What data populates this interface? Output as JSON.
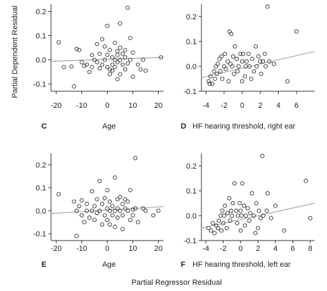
{
  "figure": {
    "ylabel": "Partial Dependent Residual",
    "xlabel": "Partial Regressor Residual"
  },
  "chart_data": [
    {
      "type": "scatter",
      "panel_letter": "C",
      "xlabel": "Age",
      "xlim": [
        -22,
        22
      ],
      "ylim": [
        -0.13,
        0.23
      ],
      "xticks": [
        -20,
        -10,
        0,
        10,
        20
      ],
      "yticks": [
        -0.1,
        0.0,
        0.1,
        0.2
      ],
      "ytick_labels": [
        "-0.1",
        "0.0",
        "0.1",
        "0.2"
      ],
      "fit_line": [
        [
          -22,
          -0.006
        ],
        [
          22,
          0.01
        ]
      ],
      "points": [
        [
          -19,
          0.072
        ],
        [
          -17,
          -0.03
        ],
        [
          -14,
          -0.028
        ],
        [
          -13,
          -0.11
        ],
        [
          -12,
          0.045
        ],
        [
          -11,
          0.04
        ],
        [
          -10,
          -0.01
        ],
        [
          -9,
          -0.025
        ],
        [
          -8,
          -0.02
        ],
        [
          -7,
          -0.05
        ],
        [
          -6,
          0.02
        ],
        [
          -6,
          -0.03
        ],
        [
          -5,
          0.0
        ],
        [
          -4,
          -0.01
        ],
        [
          -4,
          0.065
        ],
        [
          -3,
          0.025
        ],
        [
          -3,
          -0.035
        ],
        [
          -2,
          0.085
        ],
        [
          -2,
          -0.02
        ],
        [
          -1,
          0.055
        ],
        [
          -1,
          0.0
        ],
        [
          0,
          0.02
        ],
        [
          0,
          -0.03
        ],
        [
          0,
          0.14
        ],
        [
          1,
          0.04
        ],
        [
          1,
          -0.04
        ],
        [
          1,
          -0.06
        ],
        [
          2,
          0.01
        ],
        [
          2,
          -0.02
        ],
        [
          2,
          -0.045
        ],
        [
          3,
          0.07
        ],
        [
          3,
          0.0
        ],
        [
          3,
          -0.03
        ],
        [
          4,
          0.035
        ],
        [
          4,
          0.02
        ],
        [
          4,
          -0.01
        ],
        [
          4,
          -0.08
        ],
        [
          5,
          0.15
        ],
        [
          5,
          0.05
        ],
        [
          5,
          0.0
        ],
        [
          5,
          -0.06
        ],
        [
          6,
          0.025
        ],
        [
          6,
          -0.02
        ],
        [
          7,
          0.01
        ],
        [
          7,
          0.04
        ],
        [
          7,
          -0.04
        ],
        [
          8,
          0.215
        ],
        [
          8,
          -0.015
        ],
        [
          9,
          0.09
        ],
        [
          9,
          0.0
        ],
        [
          10,
          0.03
        ],
        [
          10,
          -0.07
        ],
        [
          12,
          -0.02
        ],
        [
          13,
          -0.04
        ],
        [
          14,
          0.0
        ],
        [
          15,
          -0.045
        ],
        [
          21,
          0.01
        ]
      ]
    },
    {
      "type": "scatter",
      "panel_letter": "D",
      "xlabel": "HF hearing threshold, right ear",
      "xlim": [
        -4.5,
        8.0
      ],
      "ylim": [
        -0.1,
        0.25
      ],
      "xticks": [
        -4,
        -2,
        0,
        2,
        4,
        6
      ],
      "yticks": [
        -0.1,
        0.0,
        0.1,
        0.2
      ],
      "ytick_labels": [
        "-0.1",
        "0.0",
        "0.1",
        "0.2"
      ],
      "fit_line": [
        [
          -4.5,
          -0.045
        ],
        [
          8.0,
          0.06
        ]
      ],
      "points": [
        [
          -3.7,
          -0.06
        ],
        [
          -3.6,
          -0.07
        ],
        [
          -3.5,
          -0.04
        ],
        [
          -3.3,
          -0.07
        ],
        [
          -3.1,
          -0.02
        ],
        [
          -3,
          -0.05
        ],
        [
          -2.9,
          0.0
        ],
        [
          -2.8,
          -0.03
        ],
        [
          -2.7,
          0.01
        ],
        [
          -2.5,
          0.03
        ],
        [
          -2.4,
          -0.02
        ],
        [
          -2.3,
          0.04
        ],
        [
          -2.2,
          -0.05
        ],
        [
          -2,
          0.0
        ],
        [
          -1.9,
          0.05
        ],
        [
          -1.8,
          -0.01
        ],
        [
          -1.6,
          0.02
        ],
        [
          -1.5,
          -0.06
        ],
        [
          -1.4,
          0.14
        ],
        [
          -1.3,
          0.01
        ],
        [
          -1.2,
          0.13
        ],
        [
          -1.1,
          0.0
        ],
        [
          -1,
          0.04
        ],
        [
          -0.9,
          -0.03
        ],
        [
          -0.8,
          0.08
        ],
        [
          -0.6,
          0.03
        ],
        [
          -0.5,
          -0.02
        ],
        [
          -0.4,
          0.0
        ],
        [
          -0.2,
          0.05
        ],
        [
          0,
          -0.06
        ],
        [
          0,
          0.02
        ],
        [
          0.1,
          0.05
        ],
        [
          0.3,
          -0.04
        ],
        [
          0.4,
          0.0
        ],
        [
          0.5,
          0.02
        ],
        [
          0.7,
          0.05
        ],
        [
          0.8,
          0.0
        ],
        [
          1,
          -0.05
        ],
        [
          1.1,
          0.03
        ],
        [
          1.3,
          -0.02
        ],
        [
          1.5,
          0.08
        ],
        [
          1.6,
          0.0
        ],
        [
          1.8,
          0.04
        ],
        [
          2,
          0.02
        ],
        [
          2.1,
          -0.03
        ],
        [
          2.3,
          0.02
        ],
        [
          2.5,
          0.05
        ],
        [
          2.6,
          0.0
        ],
        [
          2.8,
          0.24
        ],
        [
          3,
          0.02
        ],
        [
          3.5,
          0.01
        ],
        [
          5,
          -0.06
        ],
        [
          6,
          0.14
        ]
      ]
    },
    {
      "type": "scatter",
      "panel_letter": "E",
      "xlabel": "Age",
      "xlim": [
        -22,
        22
      ],
      "ylim": [
        -0.13,
        0.25
      ],
      "xticks": [
        -20,
        -10,
        0,
        10,
        20
      ],
      "yticks": [
        -0.1,
        0.0,
        0.1,
        0.2
      ],
      "ytick_labels": [
        "-0.1",
        "0.0",
        "0.1",
        "0.2"
      ],
      "fit_line": [
        [
          -22,
          -0.012
        ],
        [
          22,
          0.018
        ]
      ],
      "points": [
        [
          -19,
          0.072
        ],
        [
          -13,
          0.04
        ],
        [
          -12,
          -0.11
        ],
        [
          -12,
          0.0
        ],
        [
          -11,
          0.02
        ],
        [
          -10,
          -0.02
        ],
        [
          -10,
          0.045
        ],
        [
          -9,
          -0.05
        ],
        [
          -8,
          0.0
        ],
        [
          -8,
          0.03
        ],
        [
          -7,
          -0.03
        ],
        [
          -6,
          0.085
        ],
        [
          -6,
          0.0
        ],
        [
          -5,
          0.02
        ],
        [
          -5,
          -0.04
        ],
        [
          -4,
          -0.01
        ],
        [
          -4,
          0.05
        ],
        [
          -3,
          0.13
        ],
        [
          -3,
          0.0
        ],
        [
          -2,
          0.03
        ],
        [
          -2,
          -0.06
        ],
        [
          -1,
          -0.02
        ],
        [
          -1,
          0.055
        ],
        [
          0,
          0.01
        ],
        [
          0,
          -0.04
        ],
        [
          0,
          0.09
        ],
        [
          1,
          0.0
        ],
        [
          1,
          0.04
        ],
        [
          1,
          -0.06
        ],
        [
          2,
          0.02
        ],
        [
          2,
          -0.02
        ],
        [
          3,
          0.145
        ],
        [
          3,
          0.0
        ],
        [
          3,
          -0.07
        ],
        [
          4,
          0.05
        ],
        [
          4,
          0.01
        ],
        [
          4,
          -0.03
        ],
        [
          5,
          0.0
        ],
        [
          5,
          0.06
        ],
        [
          6,
          0.03
        ],
        [
          6,
          -0.02
        ],
        [
          6,
          -0.08
        ],
        [
          7,
          0.01
        ],
        [
          7,
          0.05
        ],
        [
          8,
          0.0
        ],
        [
          8,
          0.04
        ],
        [
          9,
          -0.04
        ],
        [
          9,
          0.09
        ],
        [
          10,
          0.005
        ],
        [
          10,
          -0.02
        ],
        [
          11,
          0.23
        ],
        [
          11,
          0.01
        ],
        [
          12,
          -0.05
        ],
        [
          14,
          0.01
        ],
        [
          15,
          0.0
        ],
        [
          18,
          -0.02
        ],
        [
          20,
          0.0
        ]
      ]
    },
    {
      "type": "scatter",
      "panel_letter": "F",
      "xlabel": "HF hearing threshold, left ear",
      "xlim": [
        -4.5,
        8.5
      ],
      "ylim": [
        -0.1,
        0.25
      ],
      "xticks": [
        -4,
        -2,
        0,
        2,
        4,
        6,
        8
      ],
      "yticks": [
        -0.1,
        0.0,
        0.1,
        0.2
      ],
      "ytick_labels": [
        "-0.1",
        "0.0",
        "0.1",
        "0.2"
      ],
      "fit_line": [
        [
          -4.5,
          -0.05
        ],
        [
          8.5,
          0.05
        ]
      ],
      "points": [
        [
          -3.7,
          -0.05
        ],
        [
          -3.4,
          -0.06
        ],
        [
          -3.2,
          -0.03
        ],
        [
          -3.0,
          -0.07
        ],
        [
          -2.8,
          -0.04
        ],
        [
          -2.6,
          -0.05
        ],
        [
          -2.5,
          -0.02
        ],
        [
          -2.3,
          0.0
        ],
        [
          -2.2,
          -0.06
        ],
        [
          -2.1,
          0.02
        ],
        [
          -2.0,
          -0.03
        ],
        [
          -1.9,
          0.0
        ],
        [
          -1.8,
          0.04
        ],
        [
          -1.6,
          -0.05
        ],
        [
          -1.5,
          0.01
        ],
        [
          -1.3,
          0.07
        ],
        [
          -1.2,
          -0.02
        ],
        [
          -1.1,
          0.02
        ],
        [
          -1.0,
          0.0
        ],
        [
          -0.9,
          0.05
        ],
        [
          -0.7,
          0.13
        ],
        [
          -0.5,
          0.02
        ],
        [
          -0.4,
          -0.03
        ],
        [
          -0.3,
          0.0
        ],
        [
          -0.1,
          0.05
        ],
        [
          0,
          -0.06
        ],
        [
          0,
          0.02
        ],
        [
          0.1,
          0.0
        ],
        [
          0.2,
          0.13
        ],
        [
          0.4,
          0.04
        ],
        [
          0.5,
          -0.04
        ],
        [
          0.6,
          0.0
        ],
        [
          0.8,
          0.03
        ],
        [
          1.0,
          -0.02
        ],
        [
          1.1,
          0.01
        ],
        [
          1.3,
          0.09
        ],
        [
          1.5,
          0.0
        ],
        [
          1.7,
          -0.07
        ],
        [
          1.8,
          0.05
        ],
        [
          2.0,
          -0.05
        ],
        [
          2.1,
          0.02
        ],
        [
          2.3,
          -0.01
        ],
        [
          2.5,
          0.24
        ],
        [
          2.6,
          0.0
        ],
        [
          3.0,
          0.02
        ],
        [
          3.1,
          0.09
        ],
        [
          3.5,
          -0.01
        ],
        [
          4,
          0.04
        ],
        [
          5,
          -0.06
        ],
        [
          7.5,
          0.14
        ],
        [
          8,
          -0.01
        ]
      ]
    }
  ]
}
